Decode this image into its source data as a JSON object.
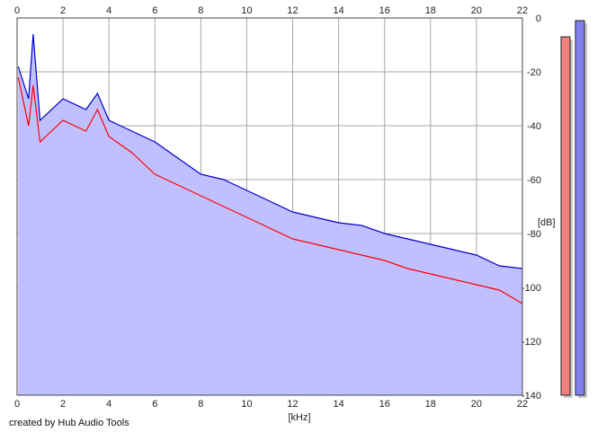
{
  "credit": "created by Hub Audio Tools",
  "chart_data": {
    "type": "area",
    "xlabel": "[kHz]",
    "ylabel": "[dB]",
    "xlim": [
      0,
      22
    ],
    "ylim": [
      -140,
      0
    ],
    "x_ticks": [
      0,
      2,
      4,
      6,
      8,
      10,
      12,
      14,
      16,
      18,
      20,
      22
    ],
    "y_ticks": [
      0,
      -20,
      -40,
      -60,
      -80,
      -100,
      -120,
      -140
    ],
    "grid": true,
    "fill_color": "#c0c0ff",
    "x": [
      0.05,
      0.5,
      0.7,
      1.0,
      2.0,
      3.0,
      3.5,
      4.0,
      5.0,
      6.0,
      7.0,
      8.0,
      9.0,
      10.0,
      11.0,
      12.0,
      13.0,
      14.0,
      15.0,
      16.0,
      17.0,
      18.0,
      19.0,
      20.0,
      21.0,
      22.0
    ],
    "series": [
      {
        "color": "#0000cc",
        "values": [
          -18,
          -30,
          -6,
          -38,
          -30,
          -34,
          -28,
          -38,
          -42,
          -46,
          -52,
          -58,
          -60,
          -64,
          -68,
          -72,
          -74,
          -76,
          -77,
          -80,
          -82,
          -84,
          -86,
          -88,
          -92,
          -93
        ]
      },
      {
        "color": "#ff0000",
        "values": [
          -22,
          -40,
          -25,
          -46,
          -38,
          -42,
          -34,
          -44,
          -50,
          -58,
          -62,
          -66,
          -70,
          -74,
          -78,
          -82,
          -84,
          -86,
          -88,
          -90,
          -93,
          -95,
          -97,
          -99,
          -101,
          -106
        ]
      }
    ],
    "meters": [
      {
        "color": "#f08080",
        "value": -7
      },
      {
        "color": "#8080f0",
        "value": -1
      }
    ]
  }
}
